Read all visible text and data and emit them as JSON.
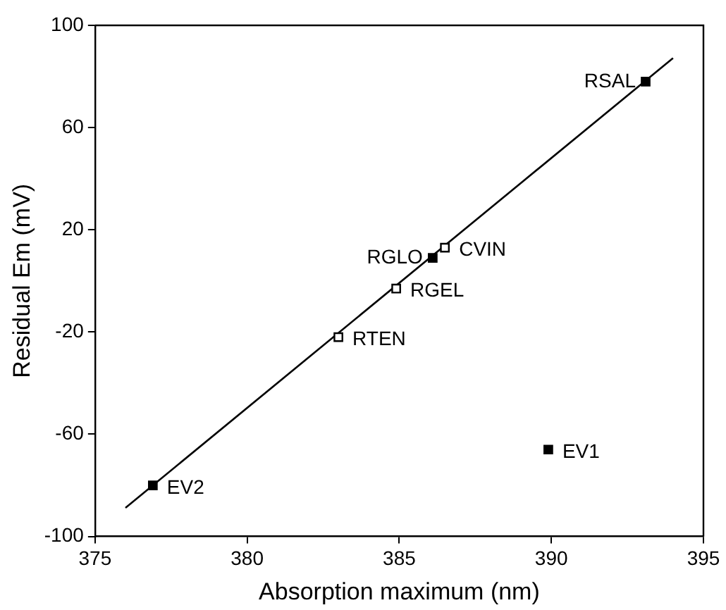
{
  "chart_data": {
    "type": "scatter",
    "xlabel": "Absorption maximum (nm)",
    "ylabel": "Residual Em (mV)",
    "xlim": [
      375,
      395
    ],
    "xticks": [
      375,
      380,
      385,
      390,
      395
    ],
    "ylim": [
      -100,
      100
    ],
    "yticks": [
      -100,
      -60,
      -20,
      20,
      60,
      100
    ],
    "grid": false,
    "legend": false,
    "marker": "square",
    "series": [
      {
        "color": "#000000",
        "x": [
          393.1,
          386.1,
          376.9,
          389.9
        ],
        "values": [
          78,
          9,
          -80,
          -66
        ]
      },
      {
        "color": "#ffffff",
        "x": [
          386.5,
          384.9,
          383.0
        ],
        "values": [
          13,
          -3,
          -22
        ]
      },
      {
        "type": "line",
        "color": "#000000",
        "marker": "none",
        "line_style": "solid",
        "x": [
          376.0,
          394.0
        ],
        "values": [
          -88.8,
          87.2
        ]
      }
    ],
    "annotations": [
      {
        "text": "RSAL",
        "x": 393.1,
        "y": 78
      },
      {
        "text": "CVIN",
        "x": 386.5,
        "y": 13
      },
      {
        "text": "RGLO",
        "x": 386.1,
        "y": 9
      },
      {
        "text": "RGEL",
        "x": 384.9,
        "y": -3
      },
      {
        "text": "RTEN",
        "x": 383.0,
        "y": -22
      },
      {
        "text": "EV2",
        "x": 376.9,
        "y": -80
      },
      {
        "text": "EV1",
        "x": 389.9,
        "y": -66
      }
    ]
  }
}
